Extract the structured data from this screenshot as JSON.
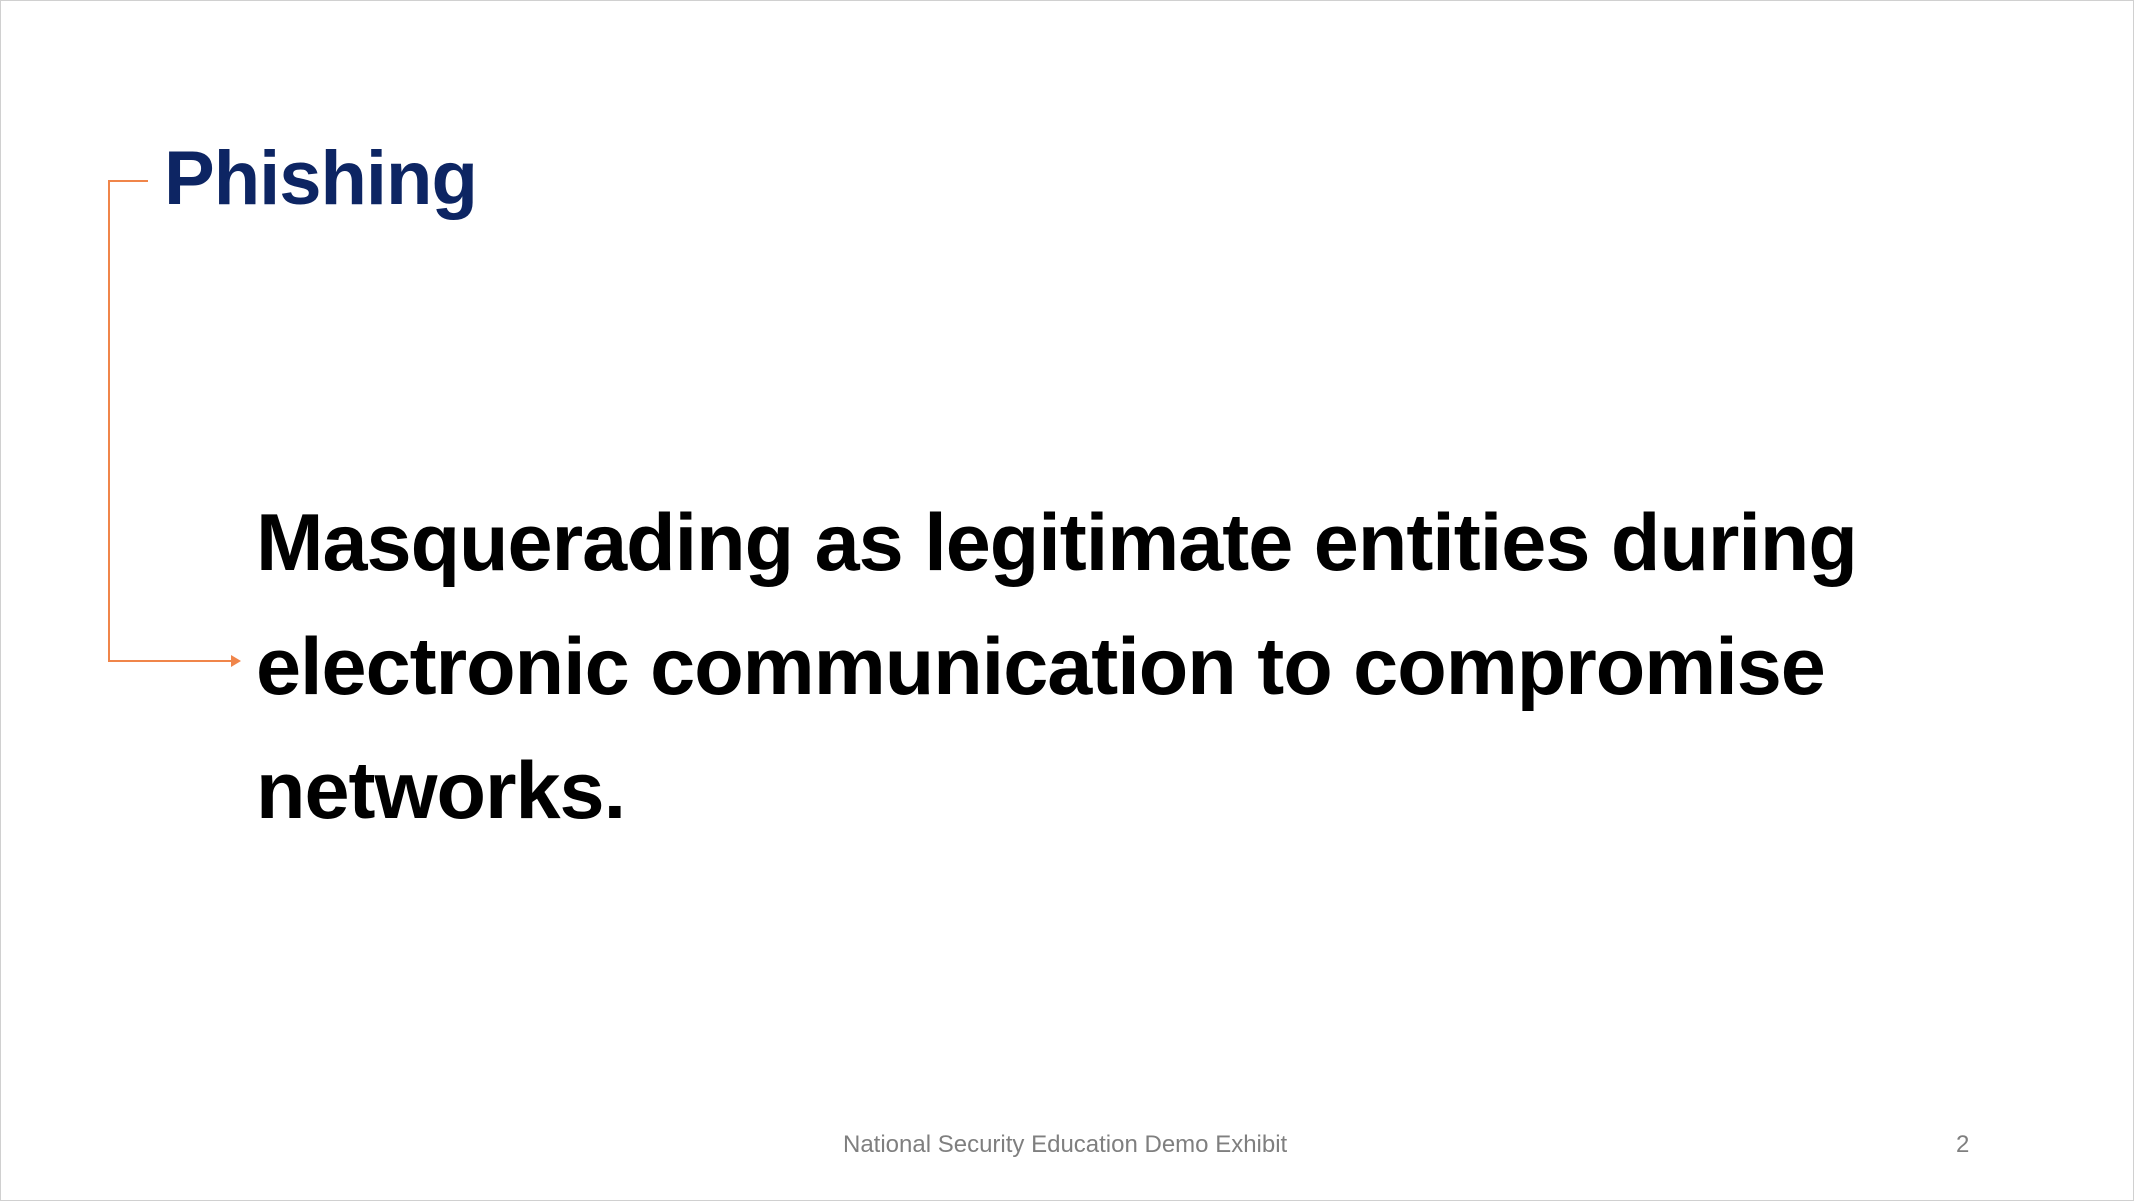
{
  "slide": {
    "title": "Phishing",
    "body": "Masquerading as legitimate entities during electronic communication to compromise networks.",
    "footer": "National Security Education Demo Exhibit",
    "page_number": "2"
  },
  "colors": {
    "title": "#0d2563",
    "body": "#000000",
    "footer": "#7f7f7f",
    "connector": "#f0854a",
    "background": "#ffffff"
  }
}
